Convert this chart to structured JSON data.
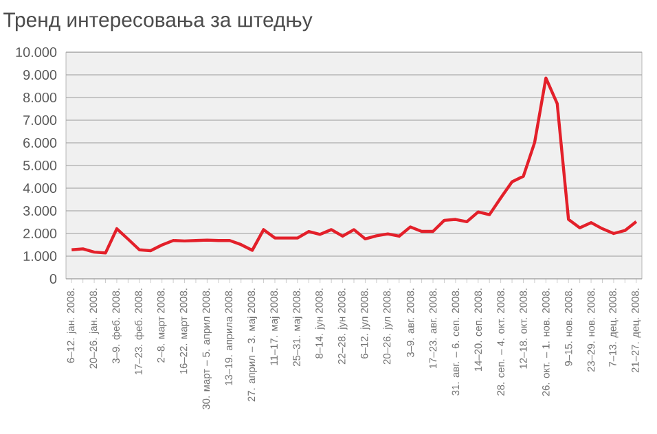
{
  "chart_data": {
    "type": "line",
    "title": "Тренд интересовања за штедњу",
    "categories": [
      "6–12. јан. 2008.",
      null,
      "20–26. јан. 2008.",
      null,
      "3–9. феб. 2008.",
      null,
      "17–23. феб. 2008.",
      null,
      "2–8. март 2008.",
      null,
      "16–22. март 2008.",
      null,
      "30. март – 5. април 2008.",
      null,
      "13–19. априла 2008.",
      null,
      "27. април – 3. мај 2008.",
      null,
      "11–17. мај 2008.",
      null,
      "25–31. мај 2008.",
      null,
      "8–14. јун 2008.",
      null,
      "22–28. јун 2008.",
      null,
      "6–12. јул 2008.",
      null,
      "20–26. јул 2008.",
      null,
      "3–9. авг. 2008.",
      null,
      "17–23. авг. 2008.",
      null,
      "31. авг. – 6. сеп. 2008.",
      null,
      "14–20. сеп. 2008.",
      null,
      "28. сеп. – 4. окт. 2008.",
      null,
      "12–18. окт. 2008.",
      null,
      "26. окт. – 1. нов. 2008.",
      null,
      "9–15. нов. 2008.",
      null,
      "23–29. нов. 2008.",
      null,
      "7–13. дец. 2008.",
      null,
      "21–27. дец. 2008."
    ],
    "series": [
      {
        "color": "#e3202a",
        "values": [
          1280,
          1320,
          1180,
          1140,
          2210,
          1750,
          1280,
          1240,
          1490,
          1690,
          1670,
          1690,
          1710,
          1690,
          1690,
          1510,
          1260,
          2170,
          1800,
          1800,
          1800,
          2090,
          1960,
          2170,
          1880,
          2170,
          1760,
          1900,
          1980,
          1880,
          2290,
          2090,
          2090,
          2580,
          2620,
          2520,
          2950,
          2830,
          3570,
          4280,
          4520,
          6010,
          8860,
          7730,
          2620,
          2250,
          2480,
          2210,
          2000,
          2130,
          2520
        ]
      }
    ],
    "ylim": [
      0,
      10000
    ],
    "yticks": [
      0,
      {
        "value": 1000,
        "label": "1.000"
      },
      {
        "value": 2000,
        "label": "2.000"
      },
      {
        "value": 3000,
        "label": "3.000"
      },
      {
        "value": 4000,
        "label": "4.000"
      },
      {
        "value": 5000,
        "label": "5.000"
      },
      {
        "value": 6000,
        "label": "6.000"
      },
      {
        "value": 7000,
        "label": "7.000"
      },
      {
        "value": 8000,
        "label": "8.000"
      },
      {
        "value": 9000,
        "label": "9.000"
      },
      {
        "value": 10000,
        "label": "10.000"
      }
    ],
    "grid": "y"
  }
}
